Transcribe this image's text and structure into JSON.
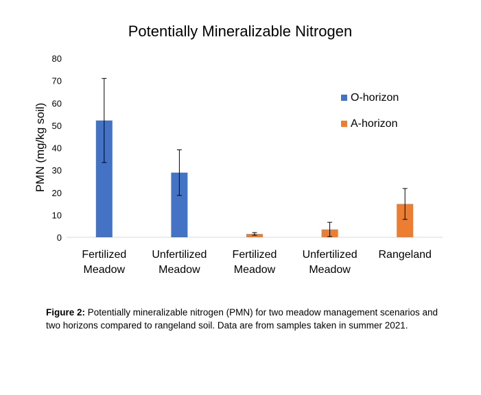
{
  "chart_data": {
    "type": "bar",
    "title": "Potentially Mineralizable Nitrogen",
    "ylabel": "PMN (mg/kg soil)",
    "xlabel": "",
    "ylim": [
      0,
      80
    ],
    "yticks": [
      0,
      10,
      20,
      30,
      40,
      50,
      60,
      70,
      80
    ],
    "grid": false,
    "legend_position": "right",
    "categories": [
      [
        "Fertilized",
        "Meadow"
      ],
      [
        "Unfertilized",
        "Meadow"
      ],
      [
        "Fertilized",
        "Meadow"
      ],
      [
        "Unfertilized",
        "Meadow"
      ],
      [
        "Rangeland"
      ]
    ],
    "series": [
      {
        "name": "O-horizon",
        "color": "#4472C4",
        "values": [
          52.2,
          28.9,
          null,
          null,
          null
        ],
        "error": [
          18.8,
          10.2,
          null,
          null,
          null
        ]
      },
      {
        "name": "A-horizon",
        "color": "#ED7D31",
        "values": [
          null,
          null,
          1.5,
          3.5,
          14.9
        ],
        "error": [
          null,
          null,
          0.6,
          3.2,
          6.9
        ]
      }
    ]
  },
  "caption": {
    "label": "Figure 2:",
    "text": " Potentially mineralizable nitrogen (PMN) for two meadow management scenarios and two horizons compared to rangeland soil. Data are from samples taken in summer 2021."
  }
}
